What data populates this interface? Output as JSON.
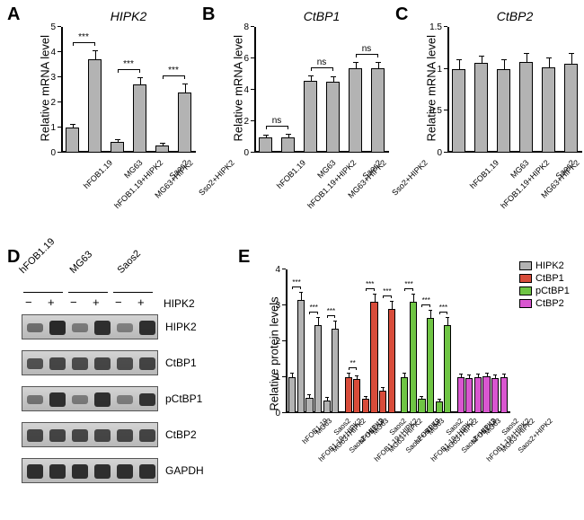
{
  "panelA": {
    "label": "A",
    "title": "HIPK2",
    "ylabel": "Relative mRNA level",
    "ylim": [
      0,
      5
    ],
    "yticks": [
      0,
      1,
      2,
      3,
      4,
      5
    ],
    "categories": [
      "hFOB1.19",
      "hFOB1.19+HIPK2",
      "MG63",
      "MG63+HIPK2",
      "Saos2",
      "Sso2+HIPK2"
    ],
    "values": [
      1.0,
      3.7,
      0.42,
      2.7,
      0.3,
      2.4
    ],
    "errors": [
      0.1,
      0.35,
      0.08,
      0.25,
      0.05,
      0.3
    ],
    "bar_color": "#b3b3b3",
    "sig": [
      {
        "from": 0,
        "to": 1,
        "label": "***"
      },
      {
        "from": 2,
        "to": 3,
        "label": "***"
      },
      {
        "from": 4,
        "to": 5,
        "label": "***"
      }
    ]
  },
  "panelB": {
    "label": "B",
    "title": "CtBP1",
    "ylabel": "Relative mRNA level",
    "ylim": [
      0,
      8
    ],
    "yticks": [
      0,
      2,
      4,
      6,
      8
    ],
    "categories": [
      "hFOB1.19",
      "hFOB1.19+HIPK2",
      "MG63",
      "MG63+HIPK2",
      "Saos2",
      "Sso2+HIPK2"
    ],
    "values": [
      1.0,
      1.0,
      4.6,
      4.5,
      5.4,
      5.4
    ],
    "errors": [
      0.1,
      0.12,
      0.25,
      0.3,
      0.3,
      0.3
    ],
    "bar_color": "#b3b3b3",
    "sig": [
      {
        "from": 0,
        "to": 1,
        "label": "ns"
      },
      {
        "from": 2,
        "to": 3,
        "label": "ns"
      },
      {
        "from": 4,
        "to": 5,
        "label": "ns"
      }
    ]
  },
  "panelC": {
    "label": "C",
    "title": "CtBP2",
    "ylabel": "Relative mRNA level",
    "ylim": [
      0,
      1.5
    ],
    "yticks": [
      0,
      0.5,
      1.0,
      1.5
    ],
    "categories": [
      "hFOB1.19",
      "hFOB1.19+HIPK2",
      "MG63",
      "MG63+HIPK2",
      "Saos2",
      "Sso2+HIPK2"
    ],
    "values": [
      1.0,
      1.07,
      1.0,
      1.08,
      1.02,
      1.06
    ],
    "errors": [
      0.1,
      0.08,
      0.1,
      0.1,
      0.1,
      0.12
    ],
    "bar_color": "#b3b3b3",
    "sig": []
  },
  "panelD": {
    "label": "D",
    "cell_lines": [
      "hFOB1.19",
      "MG63",
      "Saos2"
    ],
    "conditions": [
      "−",
      "+",
      "−",
      "+",
      "−",
      "+"
    ],
    "condition_label": "HIPK2",
    "proteins": [
      "HIPK2",
      "CtBP1",
      "pCtBP1",
      "CtBP2",
      "GAPDH"
    ],
    "band_intensities": {
      "HIPK2": [
        0.35,
        0.95,
        0.25,
        0.9,
        0.2,
        0.88
      ],
      "CtBP1": [
        0.6,
        0.7,
        0.65,
        0.7,
        0.65,
        0.72
      ],
      "pCtBP1": [
        0.3,
        0.9,
        0.25,
        0.88,
        0.22,
        0.85
      ],
      "CtBP2": [
        0.7,
        0.72,
        0.7,
        0.7,
        0.7,
        0.72
      ],
      "GAPDH": [
        0.9,
        0.9,
        0.9,
        0.9,
        0.9,
        0.9
      ]
    }
  },
  "panelE": {
    "label": "E",
    "ylabel": "Relative protein levels",
    "ylim": [
      0,
      4
    ],
    "yticks": [
      0,
      1,
      2,
      3,
      4
    ],
    "categories": [
      "hFOB1.19",
      "hFOB1.19+HIPK2",
      "MG63",
      "MG63+HIPK2",
      "Saos2",
      "Saos2+HIPK2"
    ],
    "groups": [
      "HIPK2",
      "CtBP1",
      "pCtBP1",
      "CtBP2"
    ],
    "colors": {
      "HIPK2": "#b3b3b3",
      "CtBP1": "#d84c3a",
      "pCtBP1": "#6fc544",
      "CtBP2": "#d957d0"
    },
    "values": {
      "HIPK2": [
        1.0,
        3.15,
        0.42,
        2.45,
        0.35,
        2.35
      ],
      "CtBP1": [
        1.0,
        0.95,
        0.4,
        3.1,
        0.62,
        2.9
      ],
      "pCtBP1": [
        1.0,
        3.1,
        0.4,
        2.65,
        0.32,
        2.45
      ],
      "CtBP2": [
        1.0,
        0.97,
        1.0,
        1.03,
        0.98,
        1.0
      ]
    },
    "errors": {
      "HIPK2": [
        0.1,
        0.2,
        0.08,
        0.2,
        0.07,
        0.2
      ],
      "CtBP1": [
        0.1,
        0.08,
        0.06,
        0.2,
        0.08,
        0.2
      ],
      "pCtBP1": [
        0.1,
        0.2,
        0.06,
        0.2,
        0.06,
        0.2
      ],
      "CtBP2": [
        0.08,
        0.08,
        0.08,
        0.08,
        0.08,
        0.08
      ]
    },
    "sig": {
      "HIPK2": [
        {
          "from": 0,
          "to": 1,
          "label": "***"
        },
        {
          "from": 2,
          "to": 3,
          "label": "***"
        },
        {
          "from": 4,
          "to": 5,
          "label": "***"
        }
      ],
      "CtBP1": [
        {
          "from": 0,
          "to": 1,
          "label": "**"
        },
        {
          "from": 2,
          "to": 3,
          "label": "***"
        },
        {
          "from": 4,
          "to": 5,
          "label": "***"
        }
      ],
      "pCtBP1": [
        {
          "from": 0,
          "to": 1,
          "label": "***"
        },
        {
          "from": 2,
          "to": 3,
          "label": "***"
        },
        {
          "from": 4,
          "to": 5,
          "label": "***"
        }
      ],
      "CtBP2": []
    }
  }
}
